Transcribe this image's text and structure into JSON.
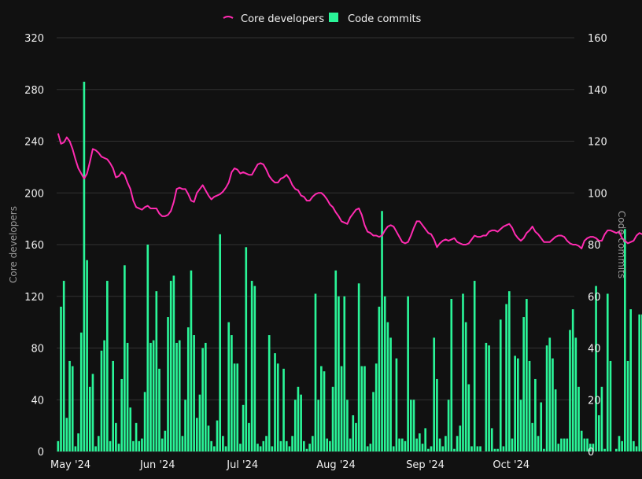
{
  "chart_data": {
    "type": "bar+line",
    "title": "",
    "legend": {
      "placement": "top-center",
      "items": [
        {
          "label": "Core developers",
          "marker": "line",
          "color": "#ff2bb1"
        },
        {
          "label": "Code commits",
          "marker": "square",
          "color": "#2af598"
        }
      ]
    },
    "x_range": [
      "2024-05-01",
      "2024-10-26"
    ],
    "x_tick_labels": [
      {
        "label": "May '24",
        "date": "2024-05-01"
      },
      {
        "label": "Jun '24",
        "date": "2024-06-01"
      },
      {
        "label": "Jul '24",
        "date": "2024-07-01"
      },
      {
        "label": "Aug '24",
        "date": "2024-08-01"
      },
      {
        "label": "Sep '24",
        "date": "2024-09-01"
      },
      {
        "label": "Oct '24",
        "date": "2024-10-01"
      }
    ],
    "y_left": {
      "label": "Core developers",
      "ylim": [
        0,
        320
      ],
      "ticks": [
        0,
        40,
        80,
        120,
        160,
        200,
        240,
        280,
        320
      ]
    },
    "y_right": {
      "label": "Code commits",
      "ylim": [
        0,
        160
      ],
      "ticks": [
        0,
        20,
        40,
        60,
        80,
        100,
        120,
        140,
        160
      ]
    },
    "grid": "horizontal",
    "series": [
      {
        "name": "Code commits",
        "type": "bar",
        "axis": "right",
        "color": "#2af598",
        "values": [
          4,
          56,
          66,
          13,
          35,
          33,
          2,
          7,
          46,
          143,
          74,
          25,
          30,
          2,
          6,
          39,
          43,
          66,
          4,
          35,
          11,
          3,
          28,
          72,
          42,
          17,
          4,
          11,
          4,
          5,
          23,
          80,
          42,
          43,
          62,
          32,
          5,
          8,
          52,
          66,
          68,
          42,
          43,
          6,
          20,
          48,
          70,
          45,
          13,
          22,
          40,
          42,
          10,
          4,
          2,
          12,
          84,
          6,
          2,
          50,
          45,
          34,
          34,
          3,
          18,
          79,
          11,
          66,
          64,
          3,
          2,
          4,
          6,
          45,
          2,
          38,
          34,
          4,
          32,
          4,
          2,
          6,
          20,
          25,
          22,
          4,
          1,
          3,
          6,
          61,
          20,
          33,
          31,
          5,
          4,
          25,
          70,
          60,
          33,
          60,
          20,
          5,
          14,
          11,
          65,
          33,
          33,
          2,
          3,
          23,
          34,
          56,
          93,
          60,
          50,
          44,
          2,
          36,
          5,
          5,
          4,
          60,
          20,
          20,
          5,
          7,
          3,
          9,
          1,
          2,
          44,
          28,
          5,
          2,
          6,
          20,
          59,
          1,
          6,
          10,
          61,
          50,
          26,
          2,
          66,
          2,
          2,
          0,
          42,
          41,
          9,
          1,
          1,
          51,
          2,
          57,
          62,
          5,
          37,
          36,
          20,
          52,
          59,
          35,
          11,
          28,
          6,
          19,
          1,
          41,
          44,
          36,
          24,
          3,
          5,
          5,
          5,
          47,
          55,
          44,
          25,
          8,
          5,
          5,
          3,
          3,
          64,
          14,
          25,
          1,
          61,
          35,
          0,
          1,
          6,
          4,
          86,
          35,
          55,
          4,
          2,
          53,
          53,
          45,
          52,
          11,
          2,
          62,
          55,
          40,
          15,
          16,
          40,
          27,
          6,
          11,
          2,
          55,
          11,
          3,
          35,
          12,
          3,
          5,
          52,
          41,
          80,
          3,
          46,
          42,
          56,
          24,
          53,
          2,
          63,
          30,
          14,
          17,
          0,
          85,
          2,
          22,
          45,
          60,
          9,
          22,
          55,
          48,
          33,
          2,
          29,
          4,
          61,
          6,
          26
        ]
      },
      {
        "name": "Core developers",
        "type": "line",
        "axis": "left",
        "color": "#ff2bb1",
        "values": [
          246,
          238,
          239,
          243,
          240,
          234,
          226,
          219,
          215,
          211,
          215,
          224,
          234,
          233,
          231,
          228,
          227,
          226,
          223,
          219,
          212,
          213,
          216,
          214,
          208,
          203,
          194,
          189,
          188,
          187,
          189,
          190,
          188,
          188,
          188,
          184,
          182,
          182,
          183,
          186,
          193,
          203,
          204,
          203,
          203,
          199,
          194,
          193,
          200,
          203,
          206,
          202,
          198,
          195,
          197,
          198,
          199,
          201,
          204,
          208,
          216,
          219,
          218,
          215,
          216,
          215,
          214,
          214,
          218,
          222,
          223,
          222,
          218,
          213,
          210,
          208,
          208,
          211,
          212,
          214,
          211,
          206,
          203,
          202,
          198,
          197,
          194,
          194,
          197,
          199,
          200,
          200,
          198,
          195,
          191,
          189,
          185,
          182,
          178,
          177,
          176,
          181,
          184,
          187,
          188,
          183,
          175,
          170,
          169,
          167,
          167,
          166,
          167,
          171,
          174,
          175,
          174,
          170,
          166,
          162,
          161,
          162,
          167,
          173,
          178,
          178,
          175,
          172,
          169,
          168,
          164,
          158,
          161,
          163,
          164,
          163,
          164,
          165,
          162,
          161,
          160,
          160,
          161,
          164,
          167,
          166,
          166,
          167,
          167,
          170,
          171,
          171,
          170,
          172,
          174,
          175,
          176,
          173,
          168,
          165,
          163,
          165,
          169,
          171,
          174,
          170,
          168,
          165,
          162,
          162,
          162,
          164,
          166,
          167,
          167,
          166,
          163,
          161,
          160,
          160,
          159,
          157,
          163,
          165,
          166,
          166,
          165,
          163,
          163,
          168,
          171,
          171,
          170,
          169,
          170,
          165,
          163,
          161,
          162,
          163,
          167,
          169,
          168,
          166,
          162,
          160,
          158,
          157,
          159,
          160,
          162,
          164,
          164,
          163,
          165,
          169,
          172,
          172,
          171,
          171,
          166,
          163,
          161,
          162,
          162,
          163,
          166,
          168,
          168,
          165,
          163,
          165,
          167,
          168,
          168,
          168,
          166,
          164,
          163,
          164,
          167,
          171,
          171,
          171,
          167,
          165,
          164,
          167,
          171,
          174,
          174,
          172,
          168,
          165,
          164,
          165,
          168,
          170,
          169,
          172,
          176,
          178,
          176,
          173,
          170,
          173,
          176,
          178,
          175,
          172,
          168,
          166,
          166,
          171,
          173,
          172,
          172
        ]
      }
    ]
  }
}
